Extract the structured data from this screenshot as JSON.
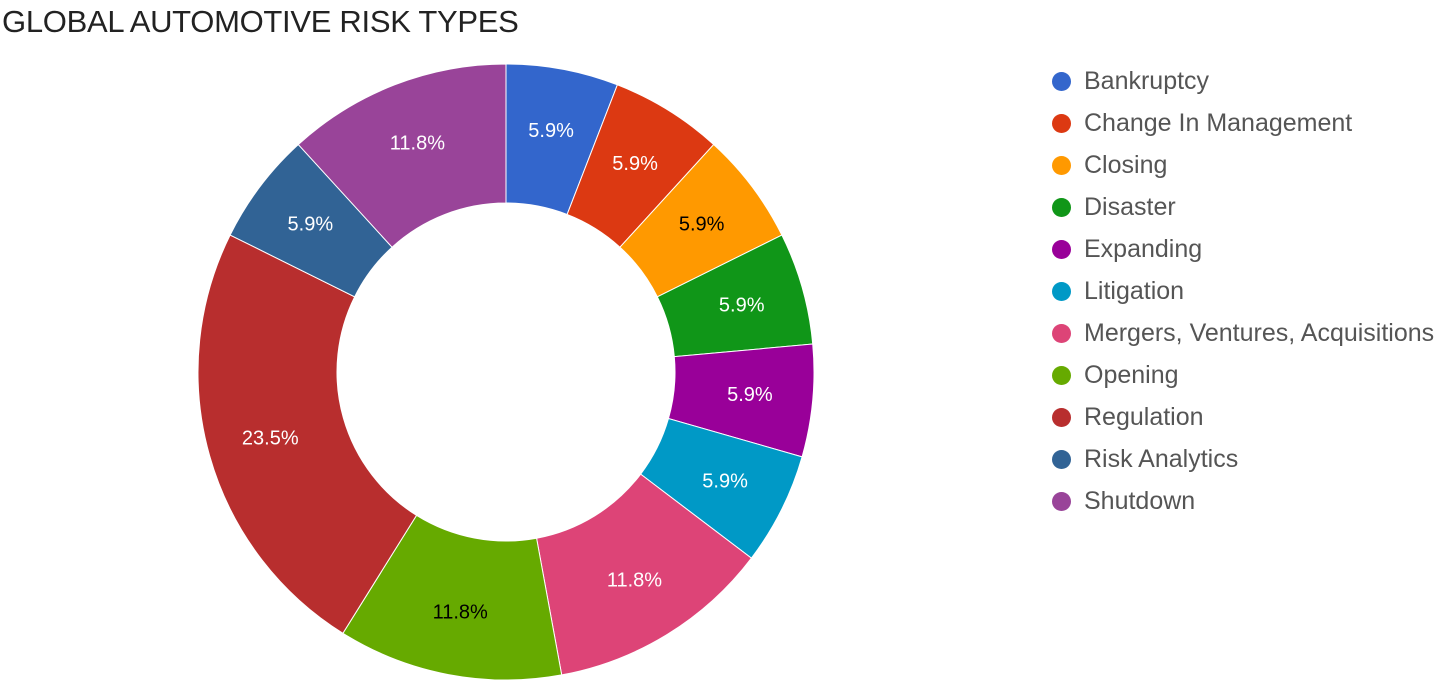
{
  "chart_data": {
    "type": "pie",
    "variant": "donut",
    "title": "GLOBAL AUTOMOTIVE RISK TYPES",
    "legend_position": "right",
    "slices": [
      {
        "label": "Bankruptcy",
        "value": 5.9,
        "display": "5.9%",
        "color": "#3366cc",
        "label_color": "#ffffff"
      },
      {
        "label": "Change In Management",
        "value": 5.9,
        "display": "5.9%",
        "color": "#dc3912",
        "label_color": "#ffffff"
      },
      {
        "label": "Closing",
        "value": 5.9,
        "display": "5.9%",
        "color": "#ff9900",
        "label_color": "#000000"
      },
      {
        "label": "Disaster",
        "value": 5.9,
        "display": "5.9%",
        "color": "#109618",
        "label_color": "#ffffff"
      },
      {
        "label": "Expanding",
        "value": 5.9,
        "display": "5.9%",
        "color": "#990099",
        "label_color": "#ffffff"
      },
      {
        "label": "Litigation",
        "value": 5.9,
        "display": "5.9%",
        "color": "#0099c6",
        "label_color": "#ffffff"
      },
      {
        "label": "Mergers, Ventures, Acquisitions",
        "value": 11.8,
        "display": "11.8%",
        "color": "#dd4477",
        "label_color": "#ffffff"
      },
      {
        "label": "Opening",
        "value": 11.8,
        "display": "11.8%",
        "color": "#66aa00",
        "label_color": "#000000"
      },
      {
        "label": "Regulation",
        "value": 23.5,
        "display": "23.5%",
        "color": "#b82e2e",
        "label_color": "#ffffff"
      },
      {
        "label": "Risk Analytics",
        "value": 5.9,
        "display": "5.9%",
        "color": "#316395",
        "label_color": "#ffffff"
      },
      {
        "label": "Shutdown",
        "value": 11.8,
        "display": "11.8%",
        "color": "#994499",
        "label_color": "#ffffff"
      }
    ]
  }
}
